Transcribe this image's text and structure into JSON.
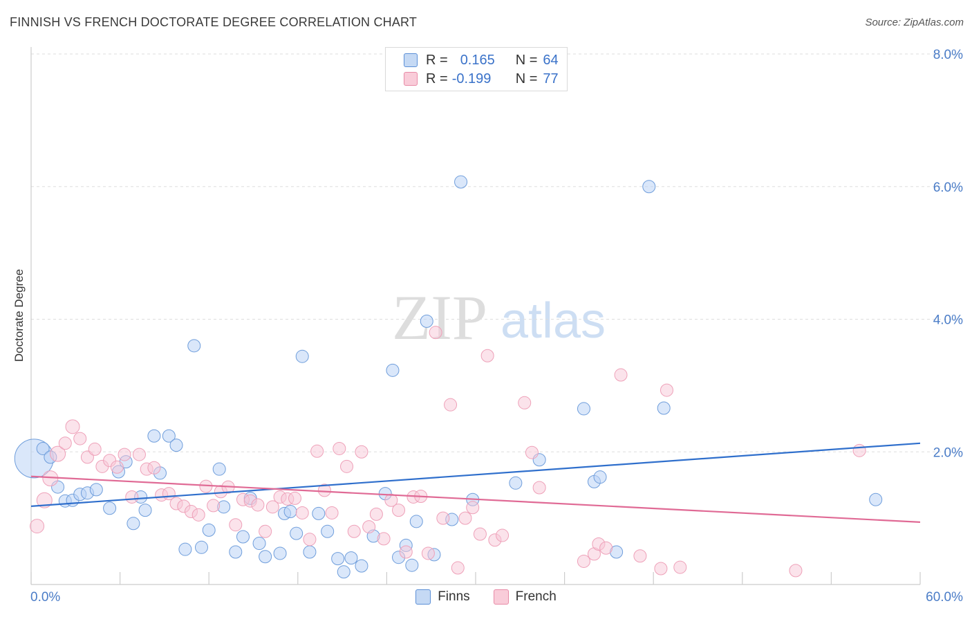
{
  "header": {
    "title": "FINNISH VS FRENCH DOCTORATE DEGREE CORRELATION CHART",
    "source": "Source: ZipAtlas.com"
  },
  "watermark": {
    "zip": "ZIP",
    "atlas": "atlas"
  },
  "legend_top": {
    "rows": [
      {
        "r_label": "R =",
        "r_value": "0.165",
        "n_label": "N =",
        "n_value": "64"
      },
      {
        "r_label": "R =",
        "r_value": "-0.199",
        "n_label": "N =",
        "n_value": "77"
      }
    ]
  },
  "chart_data": {
    "type": "scatter",
    "title": "FINNISH VS FRENCH DOCTORATE DEGREE CORRELATION CHART",
    "ylabel": "Doctorate Degree",
    "xlabel": "",
    "xlim": [
      0,
      60
    ],
    "ylim": [
      0,
      8
    ],
    "x_ticks": [
      "0.0%",
      "60.0%"
    ],
    "y_ticks": [
      "2.0%",
      "4.0%",
      "6.0%",
      "8.0%"
    ],
    "y_tick_values": [
      2,
      4,
      6,
      8
    ],
    "grid": "dashed horizontal",
    "legend": [
      "Finns",
      "French"
    ],
    "colors": {
      "Finns": "#5b8fd6",
      "French": "#e88aa6",
      "finns_line": "#2f6fcc",
      "french_line": "#e06a95"
    },
    "series": [
      {
        "name": "Finns",
        "trend": {
          "x": [
            0,
            60
          ],
          "y": [
            1.18,
            2.13
          ]
        },
        "points": [
          [
            0.2,
            1.9,
            28
          ],
          [
            0.8,
            2.05,
            9
          ],
          [
            1.3,
            1.92,
            9
          ],
          [
            1.8,
            1.47,
            9
          ],
          [
            2.3,
            1.26,
            9
          ],
          [
            2.8,
            1.27,
            9
          ],
          [
            3.3,
            1.36,
            9
          ],
          [
            3.8,
            1.38,
            9
          ],
          [
            4.4,
            1.43,
            9
          ],
          [
            5.3,
            1.15,
            9
          ],
          [
            5.9,
            1.7,
            9
          ],
          [
            6.4,
            1.85,
            9
          ],
          [
            6.9,
            0.92,
            9
          ],
          [
            7.4,
            1.32,
            9
          ],
          [
            7.7,
            1.12,
            9
          ],
          [
            8.3,
            2.24,
            9
          ],
          [
            8.7,
            1.68,
            9
          ],
          [
            9.3,
            2.24,
            9
          ],
          [
            9.8,
            2.1,
            9
          ],
          [
            10.4,
            0.53,
            9
          ],
          [
            11.0,
            3.6,
            9
          ],
          [
            11.5,
            0.56,
            9
          ],
          [
            12.0,
            0.82,
            9
          ],
          [
            12.7,
            1.74,
            9
          ],
          [
            13.0,
            1.17,
            9
          ],
          [
            13.8,
            0.49,
            9
          ],
          [
            14.3,
            0.72,
            9
          ],
          [
            14.8,
            1.3,
            9
          ],
          [
            15.4,
            0.62,
            9
          ],
          [
            15.8,
            0.42,
            9
          ],
          [
            16.8,
            0.47,
            9
          ],
          [
            17.1,
            1.07,
            9
          ],
          [
            17.5,
            1.1,
            9
          ],
          [
            17.9,
            0.77,
            9
          ],
          [
            18.3,
            3.44,
            9
          ],
          [
            18.8,
            0.49,
            9
          ],
          [
            19.4,
            1.07,
            9
          ],
          [
            20.0,
            0.8,
            9
          ],
          [
            20.7,
            0.39,
            9
          ],
          [
            21.1,
            0.19,
            9
          ],
          [
            21.6,
            0.4,
            9
          ],
          [
            22.3,
            0.28,
            9
          ],
          [
            23.1,
            0.73,
            9
          ],
          [
            23.9,
            1.37,
            9
          ],
          [
            24.4,
            3.23,
            9
          ],
          [
            24.8,
            0.41,
            9
          ],
          [
            25.3,
            0.59,
            9
          ],
          [
            25.7,
            0.29,
            9
          ],
          [
            26.0,
            0.95,
            9
          ],
          [
            26.7,
            3.97,
            9
          ],
          [
            27.2,
            0.45,
            9
          ],
          [
            28.4,
            0.98,
            9
          ],
          [
            29.0,
            6.07,
            9
          ],
          [
            29.8,
            1.28,
            9
          ],
          [
            32.7,
            1.53,
            9
          ],
          [
            34.3,
            1.88,
            9
          ],
          [
            37.3,
            2.65,
            9
          ],
          [
            38.0,
            1.55,
            9
          ],
          [
            38.4,
            1.62,
            9
          ],
          [
            39.5,
            0.49,
            9
          ],
          [
            41.7,
            6.0,
            9
          ],
          [
            42.7,
            2.66,
            9
          ],
          [
            57.0,
            1.28,
            9
          ]
        ]
      },
      {
        "name": "French",
        "trend": {
          "x": [
            0,
            60
          ],
          "y": [
            1.63,
            0.94
          ]
        },
        "points": [
          [
            0.4,
            0.88,
            10
          ],
          [
            0.9,
            1.27,
            11
          ],
          [
            1.3,
            1.6,
            11
          ],
          [
            1.8,
            1.97,
            11
          ],
          [
            2.3,
            2.13,
            9
          ],
          [
            2.8,
            2.38,
            10
          ],
          [
            3.3,
            2.2,
            9
          ],
          [
            3.8,
            1.92,
            9
          ],
          [
            4.3,
            2.04,
            9
          ],
          [
            4.8,
            1.78,
            9
          ],
          [
            5.3,
            1.87,
            9
          ],
          [
            5.8,
            1.77,
            9
          ],
          [
            6.3,
            1.96,
            9
          ],
          [
            6.8,
            1.32,
            9
          ],
          [
            7.3,
            1.96,
            9
          ],
          [
            7.8,
            1.74,
            9
          ],
          [
            8.3,
            1.76,
            9
          ],
          [
            8.8,
            1.35,
            9
          ],
          [
            9.3,
            1.37,
            9
          ],
          [
            9.8,
            1.22,
            9
          ],
          [
            10.3,
            1.18,
            9
          ],
          [
            10.8,
            1.1,
            9
          ],
          [
            11.3,
            1.05,
            9
          ],
          [
            11.8,
            1.48,
            9
          ],
          [
            12.3,
            1.19,
            9
          ],
          [
            12.8,
            1.4,
            9
          ],
          [
            13.3,
            1.47,
            9
          ],
          [
            13.8,
            0.9,
            9
          ],
          [
            14.3,
            1.28,
            9
          ],
          [
            14.8,
            1.26,
            9
          ],
          [
            15.3,
            1.2,
            9
          ],
          [
            15.8,
            0.8,
            9
          ],
          [
            16.3,
            1.17,
            9
          ],
          [
            16.8,
            1.32,
            9
          ],
          [
            17.3,
            1.29,
            9
          ],
          [
            17.8,
            1.3,
            9
          ],
          [
            18.3,
            1.08,
            9
          ],
          [
            18.8,
            0.68,
            9
          ],
          [
            19.3,
            2.01,
            9
          ],
          [
            19.8,
            1.42,
            9
          ],
          [
            20.3,
            1.08,
            9
          ],
          [
            20.8,
            2.05,
            9
          ],
          [
            21.3,
            1.78,
            9
          ],
          [
            21.8,
            0.8,
            9
          ],
          [
            22.3,
            2.0,
            9
          ],
          [
            22.8,
            0.87,
            9
          ],
          [
            23.3,
            1.06,
            9
          ],
          [
            23.8,
            0.69,
            9
          ],
          [
            24.3,
            1.27,
            9
          ],
          [
            24.8,
            1.12,
            9
          ],
          [
            25.3,
            0.49,
            9
          ],
          [
            25.8,
            1.32,
            9
          ],
          [
            26.3,
            1.33,
            9
          ],
          [
            26.8,
            0.47,
            9
          ],
          [
            27.3,
            3.8,
            9
          ],
          [
            27.8,
            1.0,
            9
          ],
          [
            28.3,
            2.71,
            9
          ],
          [
            28.8,
            0.25,
            9
          ],
          [
            29.3,
            1.0,
            9
          ],
          [
            29.8,
            1.16,
            9
          ],
          [
            30.3,
            0.76,
            9
          ],
          [
            30.8,
            3.45,
            9
          ],
          [
            31.3,
            0.67,
            9
          ],
          [
            31.8,
            0.74,
            9
          ],
          [
            33.3,
            2.74,
            9
          ],
          [
            33.8,
            1.99,
            9
          ],
          [
            34.3,
            1.46,
            9
          ],
          [
            37.3,
            0.35,
            9
          ],
          [
            38.0,
            0.46,
            9
          ],
          [
            38.3,
            0.61,
            9
          ],
          [
            38.8,
            0.55,
            9
          ],
          [
            39.8,
            3.16,
            9
          ],
          [
            41.1,
            0.43,
            9
          ],
          [
            42.5,
            0.24,
            9
          ],
          [
            42.9,
            2.93,
            9
          ],
          [
            43.8,
            0.26,
            9
          ],
          [
            51.6,
            0.21,
            9
          ],
          [
            55.9,
            2.02,
            9
          ]
        ]
      }
    ]
  },
  "bottom_legend": [
    {
      "label": "Finns"
    },
    {
      "label": "French"
    }
  ]
}
